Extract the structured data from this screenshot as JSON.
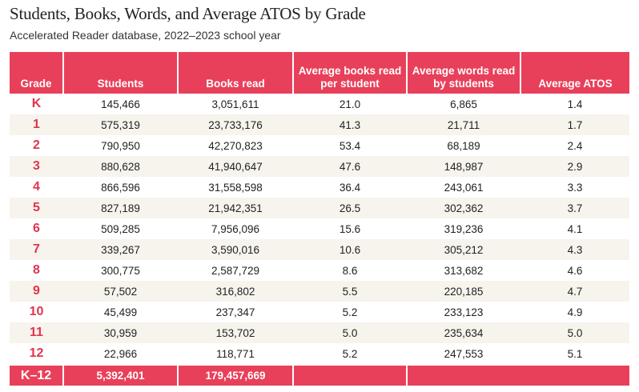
{
  "title": "Students, Books, Words, and Average ATOS by Grade",
  "subtitle": "Accelerated Reader database, 2022–2023 school year",
  "colors": {
    "header": "#e8405a",
    "grade_text": "#e0344f",
    "stripe": "#f7f4ed"
  },
  "table": {
    "headers": [
      "Grade",
      "Students",
      "Books read",
      "Average books read per student",
      "Average words read by students",
      "Average ATOS"
    ],
    "rows": [
      [
        "K",
        "145,466",
        "3,051,611",
        "21.0",
        "6,865",
        "1.4"
      ],
      [
        "1",
        "575,319",
        "23,733,176",
        "41.3",
        "21,711",
        "1.7"
      ],
      [
        "2",
        "790,950",
        "42,270,823",
        "53.4",
        "68,189",
        "2.4"
      ],
      [
        "3",
        "880,628",
        "41,940,647",
        "47.6",
        "148,987",
        "2.9"
      ],
      [
        "4",
        "866,596",
        "31,558,598",
        "36.4",
        "243,061",
        "3.3"
      ],
      [
        "5",
        "827,189",
        "21,942,351",
        "26.5",
        "302,362",
        "3.7"
      ],
      [
        "6",
        "509,285",
        "7,956,096",
        "15.6",
        "319,236",
        "4.1"
      ],
      [
        "7",
        "339,267",
        "3,590,016",
        "10.6",
        "305,212",
        "4.3"
      ],
      [
        "8",
        "300,775",
        "2,587,729",
        "8.6",
        "313,682",
        "4.6"
      ],
      [
        "9",
        "57,502",
        "316,802",
        "5.5",
        "220,185",
        "4.7"
      ],
      [
        "10",
        "45,499",
        "237,347",
        "5.2",
        "233,123",
        "4.9"
      ],
      [
        "11",
        "30,959",
        "153,702",
        "5.0",
        "235,634",
        "5.0"
      ],
      [
        "12",
        "22,966",
        "118,771",
        "5.2",
        "247,553",
        "5.1"
      ]
    ],
    "total": {
      "grade": "K–12",
      "students": "5,392,401",
      "books": "179,457,669"
    }
  }
}
